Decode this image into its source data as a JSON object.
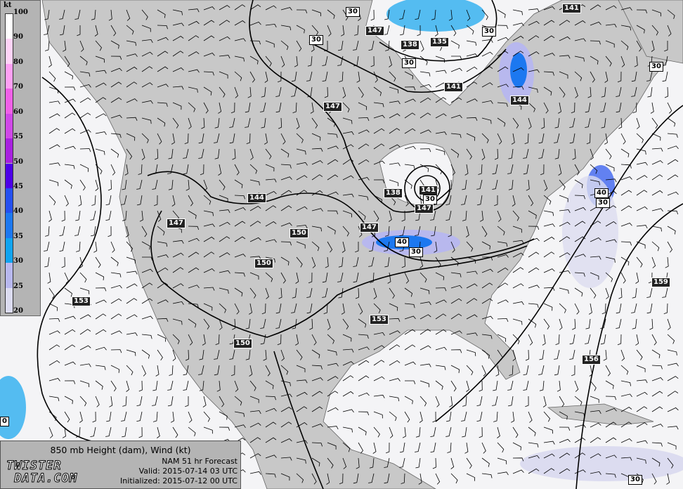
{
  "map": {
    "title": "850 mb Height (dam), Wind (kt)",
    "model_line": "NAM 51 hr Forecast",
    "valid_line": "Valid: 2015-07-14 03 UTC",
    "init_line": "Initialized: 2015-07-12 00 UTC",
    "logo_text": "TWISTER DATA.COM",
    "colors": {
      "ocean": "#f4f4f6",
      "land": "#c8c8c8",
      "contour": "#000000"
    },
    "height_contour_labels": [
      "30",
      "147",
      "30",
      "138",
      "135",
      "30",
      "141",
      "30",
      "30",
      "141",
      "144",
      "147",
      "144",
      "138",
      "141",
      "30",
      "147",
      "147",
      "150",
      "147",
      "40",
      "30",
      "150",
      "153",
      "153",
      "150",
      "156",
      "159",
      "40",
      "30",
      "30",
      "0"
    ]
  },
  "legend": {
    "unit": "kt",
    "ticks": [
      "100",
      "90",
      "80",
      "70",
      "60",
      "55",
      "50",
      "45",
      "40",
      "35",
      "30",
      "25",
      "20"
    ],
    "bins": [
      {
        "from": 90,
        "to": 100,
        "color": "#ffffff"
      },
      {
        "from": 80,
        "to": 90,
        "color": "#ffd4f8"
      },
      {
        "from": 70,
        "to": 80,
        "color": "#ffa0f4"
      },
      {
        "from": 60,
        "to": 70,
        "color": "#f060e8"
      },
      {
        "from": 55,
        "to": 60,
        "color": "#d048e8"
      },
      {
        "from": 50,
        "to": 55,
        "color": "#a820e0"
      },
      {
        "from": 45,
        "to": 50,
        "color": "#4c00e8"
      },
      {
        "from": 40,
        "to": 45,
        "color": "#2450f0"
      },
      {
        "from": 35,
        "to": 40,
        "color": "#1c78f0"
      },
      {
        "from": 30,
        "to": 35,
        "color": "#10a4f0"
      },
      {
        "from": 25,
        "to": 30,
        "color": "#b8b8ee"
      },
      {
        "from": 20,
        "to": 25,
        "color": "#dcdcf0"
      }
    ]
  }
}
